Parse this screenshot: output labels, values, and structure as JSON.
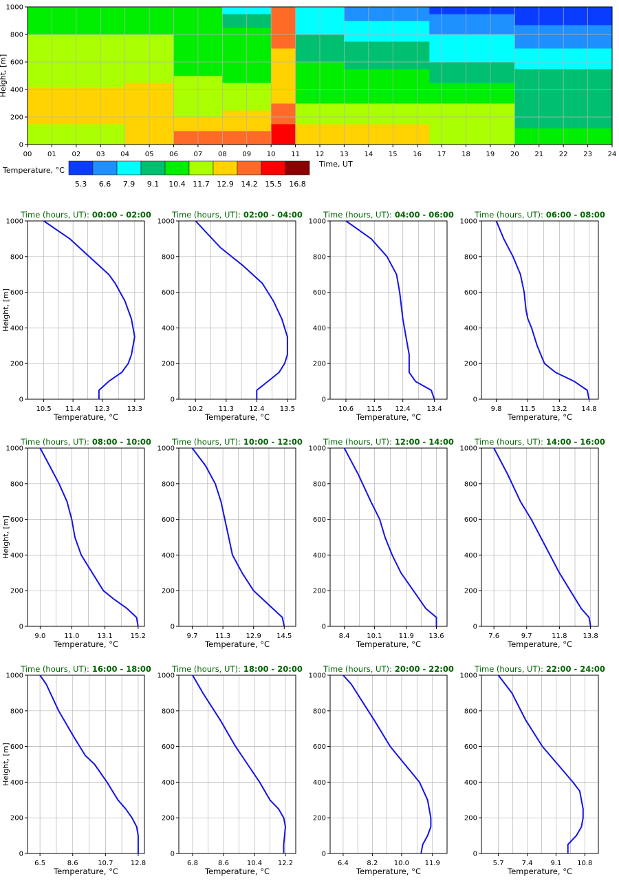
{
  "heatmap": {
    "xlabel": "Time, UT",
    "ylabel": "Height, [m]",
    "x_ticks": [
      "00",
      "01",
      "02",
      "03",
      "04",
      "05",
      "06",
      "07",
      "08",
      "09",
      "10",
      "11",
      "12",
      "13",
      "14",
      "15",
      "16",
      "17",
      "18",
      "19",
      "20",
      "21",
      "22",
      "23",
      "24"
    ],
    "y_ticks": [
      "0",
      "200",
      "400",
      "600",
      "800",
      "1000"
    ],
    "xlim": [
      0,
      24
    ],
    "ylim": [
      0,
      1000
    ]
  },
  "legend": {
    "title": "Temperature, °C",
    "labels": [
      "5.3",
      "6.6",
      "7.9",
      "9.1",
      "10.4",
      "11.7",
      "12.9",
      "14.2",
      "15.5",
      "16.8"
    ],
    "colors": [
      "#0a3cff",
      "#1e90ff",
      "#00ffff",
      "#00c070",
      "#00ee00",
      "#aaff00",
      "#ffd200",
      "#ff6a28",
      "#ff0000",
      "#8b0000"
    ]
  },
  "chart_data": [
    {
      "type": "heatmap",
      "x_range": [
        0,
        24
      ],
      "y_range": [
        0,
        1000
      ],
      "xlabel": "Time, UT",
      "ylabel": "Height, [m]",
      "color_levels": [
        5.3,
        6.6,
        7.9,
        9.1,
        10.4,
        11.7,
        12.9,
        14.2,
        15.5,
        16.8
      ],
      "grid": true,
      "time_blocks": [
        {
          "start": 0,
          "end": 4,
          "rows": [
            [
              0,
              150,
              11.7
            ],
            [
              150,
              420,
              12.9
            ],
            [
              420,
              700,
              11.7
            ],
            [
              700,
              800,
              11.7
            ],
            [
              800,
              1000,
              10.4
            ]
          ]
        },
        {
          "start": 4,
          "end": 6,
          "rows": [
            [
              0,
              200,
              12.9
            ],
            [
              200,
              450,
              12.9
            ],
            [
              450,
              800,
              11.7
            ],
            [
              800,
              1000,
              10.4
            ]
          ]
        },
        {
          "start": 6,
          "end": 8,
          "rows": [
            [
              0,
              100,
              14.2
            ],
            [
              100,
              200,
              12.9
            ],
            [
              200,
              500,
              11.7
            ],
            [
              500,
              800,
              10.4
            ],
            [
              800,
              1000,
              10.4
            ]
          ]
        },
        {
          "start": 8,
          "end": 10,
          "rows": [
            [
              0,
              100,
              14.2
            ],
            [
              100,
              250,
              12.9
            ],
            [
              250,
              450,
              11.7
            ],
            [
              450,
              850,
              10.4
            ],
            [
              850,
              950,
              9.1
            ],
            [
              950,
              1000,
              7.9
            ]
          ]
        },
        {
          "start": 10,
          "end": 11,
          "rows": [
            [
              0,
              150,
              15.5
            ],
            [
              150,
              300,
              14.2
            ],
            [
              300,
              700,
              12.9
            ],
            [
              700,
              1000,
              14.2
            ]
          ]
        },
        {
          "start": 11,
          "end": 13,
          "rows": [
            [
              0,
              150,
              12.9
            ],
            [
              150,
              300,
              11.7
            ],
            [
              300,
              600,
              10.4
            ],
            [
              600,
              800,
              9.1
            ],
            [
              800,
              1000,
              7.9
            ]
          ]
        },
        {
          "start": 13,
          "end": 16.5,
          "rows": [
            [
              0,
              150,
              12.9
            ],
            [
              150,
              300,
              11.7
            ],
            [
              300,
              550,
              10.4
            ],
            [
              550,
              750,
              9.1
            ],
            [
              750,
              900,
              7.9
            ],
            [
              900,
              1000,
              6.6
            ]
          ]
        },
        {
          "start": 16.5,
          "end": 20,
          "rows": [
            [
              0,
              150,
              11.7
            ],
            [
              150,
              300,
              11.7
            ],
            [
              300,
              450,
              10.4
            ],
            [
              450,
              600,
              9.1
            ],
            [
              600,
              800,
              7.9
            ],
            [
              800,
              950,
              6.6
            ],
            [
              950,
              1000,
              5.3
            ]
          ]
        },
        {
          "start": 20,
          "end": 24,
          "rows": [
            [
              0,
              120,
              10.4
            ],
            [
              120,
              220,
              9.1
            ],
            [
              220,
              400,
              9.1
            ],
            [
              400,
              550,
              9.1
            ],
            [
              550,
              700,
              7.9
            ],
            [
              700,
              870,
              6.6
            ],
            [
              870,
              1000,
              5.3
            ]
          ]
        }
      ]
    },
    {
      "type": "line",
      "title_prefix": "Time (hours, UT):",
      "title_range": " 00:00 - 02:00",
      "xlabel": "Temperature, °C",
      "ylabel": "Height, [m]",
      "xlim": [
        10.0,
        13.6
      ],
      "xticks": [
        "10.5",
        "11.4",
        "12.3",
        "13.3"
      ],
      "xtick_values": [
        10.5,
        11.4,
        12.3,
        13.3
      ],
      "ylim": [
        0,
        1000
      ],
      "yticks": [
        "0",
        "200",
        "400",
        "600",
        "800",
        "1000"
      ],
      "x": [
        12.2,
        12.2,
        12.5,
        12.9,
        13.1,
        13.2,
        13.3,
        13.2,
        13.0,
        12.7,
        12.5,
        11.9,
        11.3,
        10.5
      ],
      "y": [
        0,
        50,
        100,
        150,
        200,
        250,
        350,
        450,
        550,
        650,
        700,
        800,
        900,
        1000
      ]
    },
    {
      "type": "line",
      "title_prefix": "Time (hours, UT):",
      "title_range": " 02:00 - 04:00",
      "xlabel": "Temperature, °C",
      "ylabel": "Height, [m]",
      "xlim": [
        9.6,
        13.8
      ],
      "xticks": [
        "10.2",
        "11.3",
        "12.4",
        "13.5"
      ],
      "xtick_values": [
        10.2,
        11.3,
        12.4,
        13.5
      ],
      "ylim": [
        0,
        1000
      ],
      "yticks": [
        "0",
        "200",
        "400",
        "600",
        "800",
        "1000"
      ],
      "x": [
        12.4,
        12.4,
        12.8,
        13.2,
        13.4,
        13.5,
        13.5,
        13.3,
        13.0,
        12.6,
        11.9,
        11.1,
        10.2
      ],
      "y": [
        0,
        50,
        100,
        150,
        200,
        250,
        350,
        450,
        550,
        650,
        750,
        850,
        1000
      ]
    },
    {
      "type": "line",
      "title_prefix": "Time (hours, UT):",
      "title_range": " 04:00 - 06:00",
      "xlabel": "Temperature, °C",
      "ylabel": "Height, [m]",
      "xlim": [
        10.1,
        13.8
      ],
      "xticks": [
        "10.6",
        "11.5",
        "12.4",
        "13.4"
      ],
      "xtick_values": [
        10.6,
        11.5,
        12.4,
        13.4
      ],
      "ylim": [
        0,
        1000
      ],
      "yticks": [
        "0",
        "200",
        "400",
        "600",
        "800",
        "1000"
      ],
      "x": [
        13.4,
        13.3,
        12.8,
        12.6,
        12.6,
        12.5,
        12.4,
        12.3,
        12.2,
        11.9,
        11.4,
        10.6
      ],
      "y": [
        0,
        50,
        100,
        150,
        250,
        350,
        450,
        600,
        700,
        800,
        900,
        1000
      ]
    },
    {
      "type": "line",
      "title_prefix": "Time (hours, UT):",
      "title_range": " 06:00 - 08:00",
      "xlabel": "Temperature, °C",
      "ylabel": "Height, [m]",
      "xlim": [
        9.0,
        15.3
      ],
      "xticks": [
        "9.8",
        "11.5",
        "13.2",
        "14.8"
      ],
      "xtick_values": [
        9.8,
        11.5,
        13.2,
        14.8
      ],
      "ylim": [
        0,
        1000
      ],
      "yticks": [
        "0",
        "200",
        "400",
        "600",
        "800",
        "1000"
      ],
      "x": [
        14.8,
        14.7,
        14.0,
        13.0,
        12.4,
        12.0,
        11.7,
        11.5,
        11.4,
        11.3,
        11.1,
        10.7,
        10.2,
        9.8
      ],
      "y": [
        0,
        50,
        100,
        150,
        200,
        300,
        400,
        450,
        500,
        600,
        700,
        800,
        900,
        1000
      ]
    },
    {
      "type": "line",
      "title_prefix": "Time (hours, UT):",
      "title_range": " 08:00 - 10:00",
      "xlabel": "Temperature, °C",
      "ylabel": "Height, [m]",
      "xlim": [
        8.2,
        15.6
      ],
      "xticks": [
        "9.0",
        "11.0",
        "13.1",
        "15.2"
      ],
      "xtick_values": [
        9.0,
        11.0,
        13.1,
        15.2
      ],
      "ylim": [
        0,
        1000
      ],
      "yticks": [
        "0",
        "200",
        "400",
        "600",
        "800",
        "1000"
      ],
      "x": [
        15.2,
        15.1,
        14.5,
        13.7,
        13.0,
        12.3,
        11.6,
        11.2,
        11.0,
        10.7,
        10.2,
        9.6,
        9.0
      ],
      "y": [
        0,
        50,
        100,
        150,
        200,
        300,
        400,
        500,
        600,
        700,
        800,
        900,
        1000
      ]
    },
    {
      "type": "line",
      "title_prefix": "Time (hours, UT):",
      "title_range": " 10:00 - 12:00",
      "xlabel": "Temperature, °C",
      "ylabel": "Height, [m]",
      "xlim": [
        9.0,
        15.1
      ],
      "xticks": [
        "9.7",
        "11.3",
        "12.9",
        "14.5"
      ],
      "xtick_values": [
        9.7,
        11.3,
        12.9,
        14.5
      ],
      "ylim": [
        0,
        1000
      ],
      "yticks": [
        "0",
        "200",
        "400",
        "600",
        "800",
        "1000"
      ],
      "x": [
        14.5,
        14.4,
        13.9,
        13.4,
        12.9,
        12.3,
        11.8,
        11.6,
        11.4,
        11.2,
        10.9,
        10.4,
        9.7
      ],
      "y": [
        0,
        50,
        100,
        150,
        200,
        300,
        400,
        500,
        600,
        700,
        800,
        900,
        1000
      ]
    },
    {
      "type": "line",
      "title_prefix": "Time (hours, UT):",
      "title_range": " 12:00 - 14:00",
      "xlabel": "Temperature, °C",
      "ylabel": "Height, [m]",
      "xlim": [
        7.6,
        14.2
      ],
      "xticks": [
        "8.4",
        "10.1",
        "11.9",
        "13.6"
      ],
      "xtick_values": [
        8.4,
        10.1,
        11.9,
        13.6
      ],
      "ylim": [
        0,
        1000
      ],
      "yticks": [
        "0",
        "200",
        "400",
        "600",
        "800",
        "1000"
      ],
      "x": [
        13.6,
        13.6,
        13.0,
        12.3,
        11.6,
        11.1,
        10.7,
        10.4,
        9.9,
        9.2,
        8.4
      ],
      "y": [
        0,
        50,
        100,
        200,
        300,
        400,
        500,
        600,
        700,
        850,
        1000
      ]
    },
    {
      "type": "line",
      "title_prefix": "Time (hours, UT):",
      "title_range": " 14:00 - 16:00",
      "xlabel": "Temperature, °C",
      "ylabel": "Height, [m]",
      "xlim": [
        6.8,
        14.3
      ],
      "xticks": [
        "7.6",
        "9.7",
        "11.8",
        "13.8"
      ],
      "xtick_values": [
        7.6,
        9.7,
        11.8,
        13.8
      ],
      "ylim": [
        0,
        1000
      ],
      "yticks": [
        "0",
        "200",
        "400",
        "600",
        "800",
        "1000"
      ],
      "x": [
        13.8,
        13.7,
        13.2,
        12.5,
        11.8,
        11.2,
        10.6,
        10.0,
        9.3,
        8.5,
        7.6
      ],
      "y": [
        0,
        50,
        100,
        200,
        300,
        400,
        500,
        600,
        700,
        850,
        1000
      ]
    },
    {
      "type": "line",
      "title_prefix": "Time (hours, UT):",
      "title_range": " 16:00 - 18:00",
      "xlabel": "Temperature, °C",
      "ylabel": "Height, [m]",
      "xlim": [
        5.7,
        13.2
      ],
      "xticks": [
        "6.5",
        "8.6",
        "10.7",
        "12.8"
      ],
      "xtick_values": [
        6.5,
        8.6,
        10.7,
        12.8
      ],
      "ylim": [
        0,
        1000
      ],
      "yticks": [
        "0",
        "200",
        "400",
        "600",
        "800",
        "1000"
      ],
      "x": [
        12.8,
        12.8,
        12.7,
        12.4,
        12.0,
        11.5,
        10.8,
        10.0,
        9.4,
        8.7,
        7.7,
        6.9,
        6.5
      ],
      "y": [
        0,
        100,
        150,
        200,
        250,
        300,
        400,
        500,
        550,
        650,
        800,
        950,
        1000
      ]
    },
    {
      "type": "line",
      "title_prefix": "Time (hours, UT):",
      "title_range": " 18:00 - 20:00",
      "xlabel": "Temperature, °C",
      "ylabel": "Height, [m]",
      "xlim": [
        6.0,
        12.8
      ],
      "xticks": [
        "6.8",
        "8.6",
        "10.4",
        "12.2"
      ],
      "xtick_values": [
        6.8,
        8.6,
        10.4,
        12.2
      ],
      "ylim": [
        0,
        1000
      ],
      "yticks": [
        "0",
        "200",
        "400",
        "600",
        "800",
        "1000"
      ],
      "x": [
        12.1,
        12.1,
        12.2,
        12.1,
        11.8,
        11.3,
        10.7,
        10.0,
        9.3,
        8.4,
        7.4,
        6.8
      ],
      "y": [
        0,
        50,
        150,
        200,
        250,
        300,
        400,
        500,
        600,
        750,
        900,
        1000
      ]
    },
    {
      "type": "line",
      "title_prefix": "Time (hours, UT):",
      "title_range": " 20:00 - 22:00",
      "xlabel": "Temperature, °C",
      "ylabel": "Height, [m]",
      "xlim": [
        5.6,
        12.8
      ],
      "xticks": [
        "6.4",
        "8.2",
        "10.0",
        "11.9"
      ],
      "xtick_values": [
        6.4,
        8.2,
        10.0,
        11.9
      ],
      "ylim": [
        0,
        1000
      ],
      "yticks": [
        "0",
        "200",
        "400",
        "600",
        "800",
        "1000"
      ],
      "x": [
        11.2,
        11.3,
        11.6,
        11.8,
        11.8,
        11.6,
        11.1,
        10.2,
        9.3,
        8.3,
        7.6,
        6.9,
        6.4
      ],
      "y": [
        0,
        50,
        100,
        150,
        200,
        300,
        400,
        500,
        600,
        750,
        850,
        950,
        1000
      ]
    },
    {
      "type": "line",
      "title_prefix": "Time (hours, UT):",
      "title_range": " 22:00 - 24:00",
      "xlabel": "Temperature, °C",
      "ylabel": "Height, [m]",
      "xlim": [
        4.7,
        11.6
      ],
      "xticks": [
        "5.7",
        "7.4",
        "9.1",
        "10.8"
      ],
      "xtick_values": [
        5.7,
        7.4,
        9.1,
        10.8
      ],
      "ylim": [
        0,
        1000
      ],
      "yticks": [
        "0",
        "200",
        "400",
        "600",
        "800",
        "1000"
      ],
      "x": [
        9.8,
        9.8,
        10.3,
        10.6,
        10.7,
        10.7,
        10.5,
        10.1,
        9.2,
        8.3,
        7.3,
        6.5,
        5.7
      ],
      "y": [
        0,
        50,
        100,
        150,
        200,
        250,
        350,
        400,
        500,
        600,
        750,
        900,
        1000
      ]
    }
  ]
}
